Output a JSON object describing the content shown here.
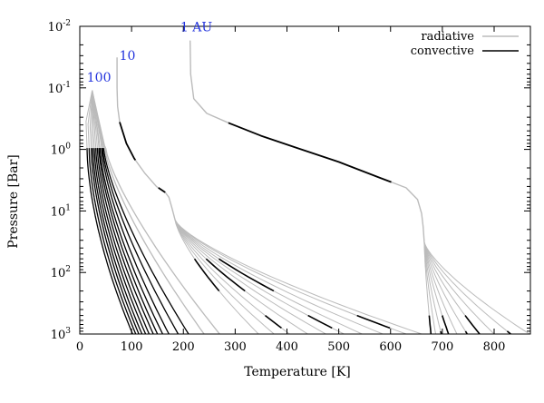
{
  "chart_data": {
    "type": "line",
    "xlabel": "Temperature [K]",
    "ylabel": "Pressure [Bar]",
    "xlim": [
      0,
      870
    ],
    "ylim": [
      0.01,
      1000
    ],
    "y_scale": "log",
    "y_inverted": true,
    "x_ticks": [
      0,
      100,
      200,
      300,
      400,
      500,
      600,
      700,
      800
    ],
    "y_ticks": [
      {
        "value": 0.01,
        "base": "10",
        "exp": "-2"
      },
      {
        "value": 0.1,
        "base": "10",
        "exp": "-1"
      },
      {
        "value": 1,
        "base": "10",
        "exp": "0"
      },
      {
        "value": 10,
        "base": "10",
        "exp": "1"
      },
      {
        "value": 100,
        "base": "10",
        "exp": "2"
      },
      {
        "value": 1000,
        "base": "10",
        "exp": "3"
      }
    ],
    "grid": false,
    "legend_position": "top-right",
    "legend": [
      {
        "label": "radiative",
        "color": "#bbbbbb"
      },
      {
        "label": "convective",
        "color": "#000000"
      }
    ],
    "annotations": [
      {
        "text": "1 AU",
        "x": 225,
        "y": 0.012
      },
      {
        "text": "10",
        "x": 92,
        "y": 0.035
      },
      {
        "text": "100",
        "x": 37,
        "y": 0.08
      }
    ],
    "colors": {
      "radiative": "#bbbbbb",
      "convective": "#000000",
      "annotation": "#2233dd"
    },
    "groups": [
      {
        "label": "1 AU",
        "n_profiles": 10,
        "upper_branch": [
          {
            "x": 213,
            "y": 0.017
          },
          {
            "x": 214,
            "y": 0.06
          },
          {
            "x": 220,
            "y": 0.15
          },
          {
            "x": 245,
            "y": 0.26
          },
          {
            "x": 290,
            "y": 0.38
          },
          {
            "x": 350,
            "y": 0.6
          },
          {
            "x": 420,
            "y": 0.95
          },
          {
            "x": 500,
            "y": 1.6
          },
          {
            "x": 580,
            "y": 2.9
          },
          {
            "x": 630,
            "y": 4.2
          },
          {
            "x": 652,
            "y": 6.5
          },
          {
            "x": 660,
            "y": 11
          },
          {
            "x": 663,
            "y": 18
          },
          {
            "x": 665,
            "y": 32
          }
        ],
        "convective_ranges": [
          [
            0.37,
            3.4
          ]
        ],
        "lower_fan_start": {
          "x": 665,
          "y": 32
        },
        "lower_fan_end_x": [
          678,
          687,
          698,
          712,
          728,
          748,
          772,
          800,
          832,
          868
        ],
        "lower_fan_convective": [
          [
            500,
            1000
          ],
          [
            900,
            1000
          ]
        ]
      },
      {
        "label": "10",
        "n_profiles": 10,
        "upper_branch": [
          {
            "x": 72,
            "y": 0.032
          },
          {
            "x": 72,
            "y": 0.1
          },
          {
            "x": 73,
            "y": 0.2
          },
          {
            "x": 77,
            "y": 0.36
          },
          {
            "x": 90,
            "y": 0.8
          },
          {
            "x": 105,
            "y": 1.4
          },
          {
            "x": 125,
            "y": 2.4
          },
          {
            "x": 148,
            "y": 4.0
          },
          {
            "x": 165,
            "y": 5.0
          },
          {
            "x": 172,
            "y": 6.0
          },
          {
            "x": 178,
            "y": 9.0
          },
          {
            "x": 184,
            "y": 14
          }
        ],
        "convective_ranges": [
          [
            0.36,
            1.5
          ],
          [
            4.2,
            5.0
          ]
        ],
        "lower_fan_start": {
          "x": 184,
          "y": 14
        },
        "lower_fan_end_x": [
          345,
          375,
          405,
          440,
          475,
          510,
          545,
          585,
          630,
          660
        ],
        "lower_fan_convective": [
          [
            60,
            200
          ],
          [
            500,
            800
          ]
        ]
      },
      {
        "label": "100",
        "n_profiles": 14,
        "apex": {
          "x": 24,
          "y": 0.11
        },
        "tip_x": [
          12,
          16,
          20,
          23,
          26,
          29,
          32,
          35,
          37,
          40,
          42,
          44,
          46,
          48
        ],
        "end_x": [
          102,
          108,
          114,
          120,
          127,
          134,
          142,
          150,
          160,
          172,
          190,
          210,
          240,
          270
        ],
        "convective_from_p": 0.95
      }
    ]
  }
}
